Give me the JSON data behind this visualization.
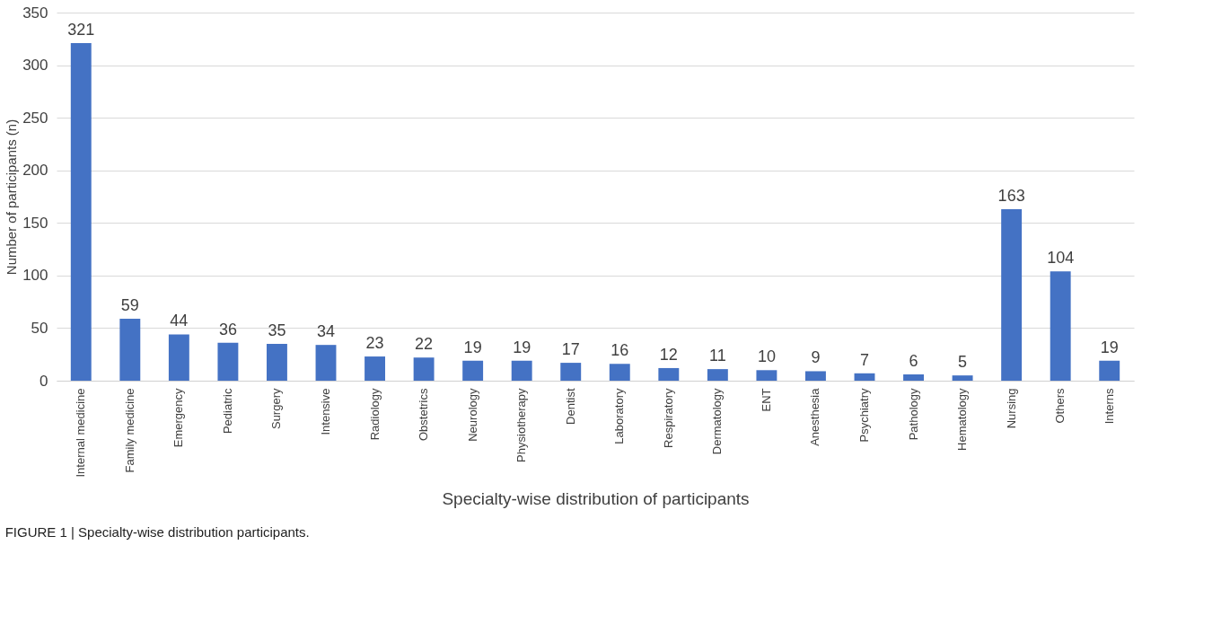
{
  "chart_data": {
    "type": "bar",
    "categories": [
      "Internal medicine",
      "Family medicine",
      "Emergency",
      "Pediatric",
      "Surgery",
      "Intensive",
      "Radiology",
      "Obstetrics",
      "Neurology",
      "Physiotherapy",
      "Dentist",
      "Laboratory",
      "Respiratory",
      "Dermatology",
      "ENT",
      "Anesthesia",
      "Psychiatry",
      "Pathology",
      "Hematology",
      "Nursing",
      "Others",
      "Interns"
    ],
    "values": [
      321,
      59,
      44,
      36,
      35,
      34,
      23,
      22,
      19,
      19,
      17,
      16,
      12,
      11,
      10,
      9,
      7,
      6,
      5,
      163,
      104,
      19
    ],
    "color": "#4472c4",
    "xlabel": "Specialty-wise distribution of participants",
    "ylabel": "Number of participants (n)",
    "ylim": [
      0,
      350
    ],
    "yticks": [
      0,
      50,
      100,
      150,
      200,
      250,
      300,
      350
    ],
    "grid": "y",
    "data_labels": true,
    "annotations": [
      "FIGURE 1 | Specialty-wise distribution participants."
    ]
  }
}
